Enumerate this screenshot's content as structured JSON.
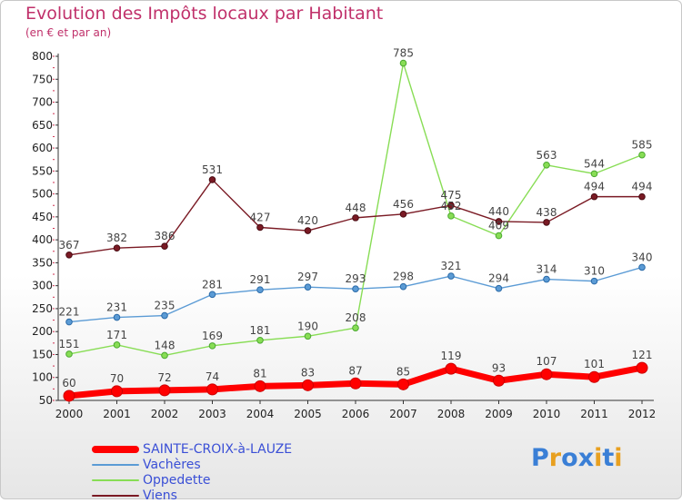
{
  "title": "Evolution des Impôts locaux par Habitant",
  "subtitle": "(en € et par an)",
  "logo": {
    "chars": [
      "P",
      "r",
      "o",
      "x",
      "i",
      "t",
      "i"
    ],
    "colors": [
      "#3a7fd6",
      "#e8a020",
      "#3a7fd6",
      "#3a7fd6",
      "#e8a020",
      "#3a7fd6",
      "#e8a020"
    ]
  },
  "chart_data": {
    "type": "line",
    "categories": [
      "2000",
      "2001",
      "2002",
      "2003",
      "2004",
      "2005",
      "2006",
      "2007",
      "2008",
      "2009",
      "2010",
      "2011",
      "2012"
    ],
    "ylim": [
      50,
      800
    ],
    "yticks": [
      "50",
      "100",
      "150",
      "200",
      "250",
      "300",
      "350",
      "400",
      "450",
      "500",
      "550",
      "600",
      "650",
      "700",
      "750",
      "800"
    ],
    "grid": false,
    "legend_position": "bottom-left",
    "series": [
      {
        "name": "SAINTE-CROIX-à-LAUZE",
        "color": "#ff0000",
        "values": [
          60,
          70,
          72,
          74,
          81,
          83,
          87,
          85,
          119,
          93,
          107,
          101,
          121
        ],
        "labels": [
          "60",
          "70",
          "72",
          "74",
          "81",
          "83",
          "87",
          "85",
          "119",
          "93",
          "107",
          "101",
          "121"
        ]
      },
      {
        "name": "Vachères",
        "color": "#5b9bd5",
        "values": [
          221,
          231,
          235,
          281,
          291,
          297,
          293,
          298,
          321,
          294,
          314,
          310,
          340
        ],
        "labels": [
          "221",
          "231",
          "235",
          "281",
          "291",
          "297",
          "293",
          "298",
          "321",
          "294",
          "314",
          "310",
          "340"
        ]
      },
      {
        "name": "Oppedette",
        "color": "#88dd55",
        "values": [
          151,
          171,
          148,
          169,
          181,
          190,
          208,
          785,
          452,
          409,
          563,
          544,
          585
        ],
        "labels": [
          "151",
          "171",
          "148",
          "169",
          "181",
          "190",
          "208",
          "785",
          "452",
          "409",
          "563",
          "544",
          "585"
        ]
      },
      {
        "name": "Viens",
        "color": "#7a1a24",
        "values": [
          367,
          382,
          386,
          531,
          427,
          420,
          448,
          456,
          475,
          440,
          438,
          494,
          494
        ],
        "labels": [
          "367",
          "382",
          "386",
          "531",
          "427",
          "420",
          "448",
          "456",
          "475",
          "440",
          "438",
          "494",
          "494"
        ]
      }
    ]
  }
}
